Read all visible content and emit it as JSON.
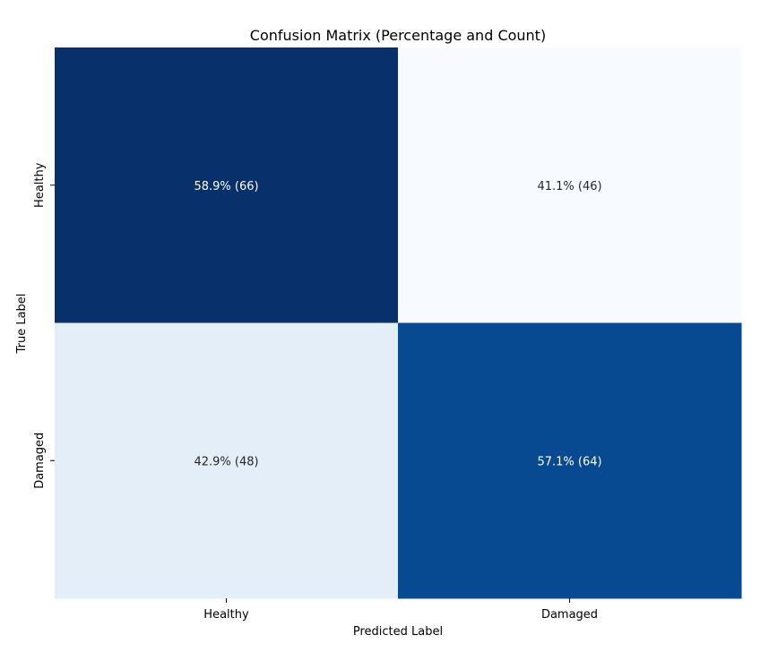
{
  "chart_data": {
    "type": "heatmap",
    "title": "Confusion Matrix (Percentage and Count)",
    "xlabel": "Predicted Label",
    "ylabel": "True Label",
    "x_categories": [
      "Healthy",
      "Damaged"
    ],
    "y_categories": [
      "Healthy",
      "Damaged"
    ],
    "percentages": [
      [
        58.9,
        41.1
      ],
      [
        42.9,
        57.1
      ]
    ],
    "counts": [
      [
        66,
        46
      ],
      [
        48,
        64
      ]
    ],
    "cell_labels": [
      [
        "58.9% (66)",
        "41.1% (46)"
      ],
      [
        "42.9% (48)",
        "57.1% (64)"
      ]
    ],
    "colormap": "Blues",
    "cell_colors": [
      [
        "#08306b",
        "#f7fbff"
      ],
      [
        "#e3eef9",
        "#084a91"
      ]
    ],
    "cell_text_colors": [
      [
        "#ffffff",
        "#262626"
      ],
      [
        "#262626",
        "#ffffff"
      ]
    ],
    "colorbar": false,
    "grid": false
  }
}
